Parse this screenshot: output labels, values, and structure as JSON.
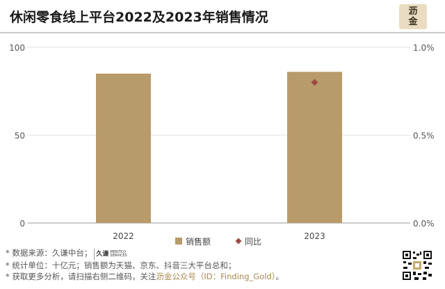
{
  "header": {
    "title": "休闲零食线上平台2022及2023年销售情况",
    "logo_line1": "沥",
    "logo_line2": "金"
  },
  "chart_data": {
    "type": "bar",
    "categories": [
      "2022",
      "2023"
    ],
    "series": [
      {
        "name": "销售额",
        "type": "bar",
        "axis": "left",
        "color": "#b89b6a",
        "values": [
          85,
          86
        ]
      },
      {
        "name": "同比",
        "type": "scatter",
        "axis": "right",
        "color": "#9e4b46",
        "values": [
          null,
          0.8
        ]
      }
    ],
    "ylim_left": [
      0,
      100
    ],
    "yticks_left": [
      "0",
      "50",
      "100"
    ],
    "ylim_right": [
      0,
      1.0
    ],
    "yticks_right": [
      "0.0%",
      "0.5%",
      "1.0%"
    ],
    "legend_position": "bottom-center"
  },
  "notes": {
    "line1_prefix": "* 数据来源：久谦中台；",
    "line1_brand": "久谦",
    "line1_brand_sub": "MERITCO SERVICES",
    "line2": "* 统计单位：十亿元；销售额为天猫、京东、抖音三大平台总和；",
    "line3_prefix": "* 获取更多分析，请扫描右侧二维码，关注",
    "line3_highlight": "沥金公众号（ID：Finding_Gold）",
    "line3_suffix": "。"
  }
}
